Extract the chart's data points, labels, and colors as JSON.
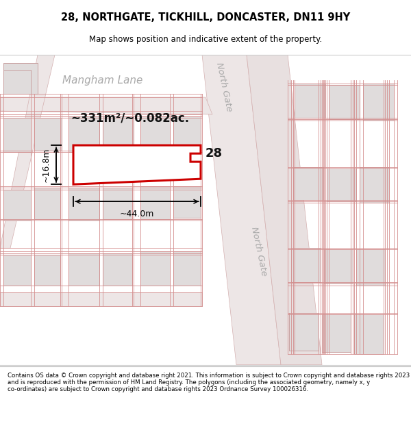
{
  "title": "28, NORTHGATE, TICKHILL, DONCASTER, DN11 9HY",
  "subtitle": "Map shows position and indicative extent of the property.",
  "footer": "Contains OS data © Crown copyright and database right 2021. This information is subject to Crown copyright and database rights 2023 and is reproduced with the permission of HM Land Registry. The polygons (including the associated geometry, namely x, y co-ordinates) are subject to Crown copyright and database rights 2023 Ordnance Survey 100026316.",
  "map_bg": "#f2f0f0",
  "road_fill": "#e8d8d8",
  "road_edge": "#d4a0a0",
  "building_fill": "#e0dcdc",
  "building_edge": "#c8a0a0",
  "highlight_color": "#cc0000",
  "highlight_fill": "#ffffff",
  "street_color": "#aaaaaa",
  "dim_color": "#111111",
  "area_label": "~331m²/~0.082ac.",
  "width_label": "~44.0m",
  "height_label": "~16.8m",
  "number_label": "28",
  "street_mangham": "Mangham Lane",
  "street_northgate": "North Gate"
}
